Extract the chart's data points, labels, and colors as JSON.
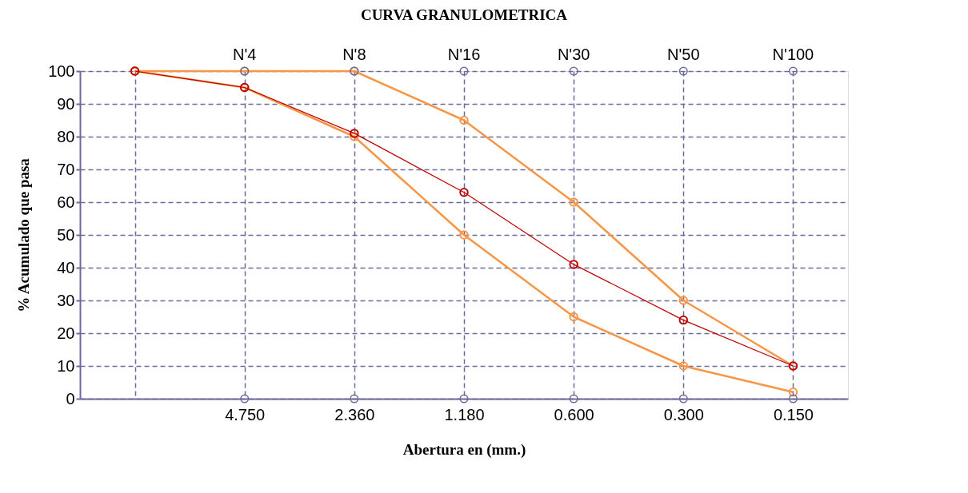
{
  "chart_data": {
    "type": "line",
    "title": "CURVA GRANULOMETRICA",
    "xlabel": "Abertura en (mm.)",
    "ylabel": "% Acumulado que pasa",
    "categories": [
      null,
      "4.750",
      "2.360",
      "1.180",
      "0.600",
      "0.300",
      "0.150"
    ],
    "series": [
      {
        "color": "#f79646",
        "values": [
          100,
          100,
          100,
          85,
          60,
          30,
          10
        ]
      },
      {
        "color": "#f79646",
        "values": [
          100,
          95,
          80,
          50,
          25,
          10,
          2
        ]
      },
      {
        "color": "#c00000",
        "values": [
          100,
          95,
          81,
          63,
          41,
          24,
          10
        ]
      },
      {
        "type": "scatter",
        "color": "#6b6b9b",
        "values": [
          null,
          100,
          100,
          100,
          100,
          100,
          100
        ]
      },
      {
        "type": "scatter",
        "color": "#6b6b9b",
        "values": [
          null,
          0,
          0,
          0,
          0,
          0,
          0
        ]
      }
    ],
    "annotations": [
      {
        "text": "N'4",
        "x": "4.750",
        "y": 100
      },
      {
        "text": "N'8",
        "x": "2.360",
        "y": 100
      },
      {
        "text": "N'16",
        "x": "1.180",
        "y": 100
      },
      {
        "text": "N'30",
        "x": "0.600",
        "y": 100
      },
      {
        "text": "N'50",
        "x": "0.300",
        "y": 100
      },
      {
        "text": "N'100",
        "x": "0.150",
        "y": 100
      }
    ],
    "ylim": [
      0,
      100
    ],
    "yticks": [
      0,
      10,
      20,
      30,
      40,
      50,
      60,
      70,
      80,
      90,
      100
    ],
    "grid": true,
    "marker": "circle",
    "line_style": "solid"
  }
}
